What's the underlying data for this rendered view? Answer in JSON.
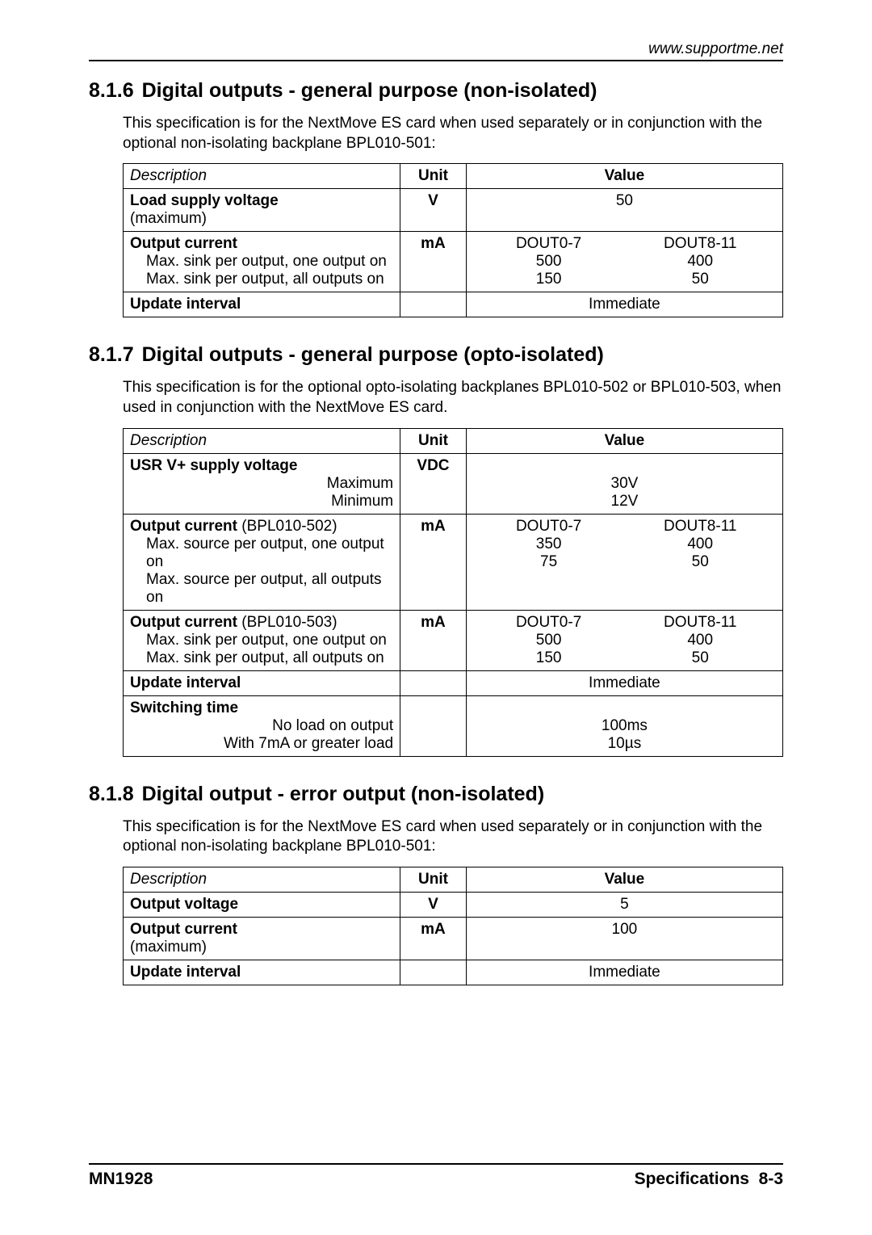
{
  "header": {
    "url": "www.supportme.net"
  },
  "sections": [
    {
      "num": "8.1.6",
      "title": "Digital outputs - general purpose (non-isolated)",
      "intro": "This specification is for the NextMove ES card when used separately or in conjunction with the optional non-isolating backplane BPL010-501:",
      "table": {
        "headers": {
          "desc": "Description",
          "unit": "Unit",
          "value": "Value"
        },
        "rows": [
          {
            "desc_bold": "Load supply voltage",
            "desc_sub": "(maximum)",
            "unit": "V",
            "value_simple": "50"
          },
          {
            "desc_bold": "Output current",
            "desc_lines": [
              "Max. sink per output, one output on",
              "Max. sink per output, all outputs on"
            ],
            "unit": "mA",
            "value_cols": {
              "left": {
                "head": "DOUT0-7",
                "v1": "500",
                "v2": "150"
              },
              "right": {
                "head": "DOUT8-11",
                "v1": "400",
                "v2": "50"
              }
            }
          },
          {
            "desc_bold": "Update interval",
            "unit": "",
            "value_simple": "Immediate"
          }
        ]
      }
    },
    {
      "num": "8.1.7",
      "title": "Digital outputs - general purpose (opto-isolated)",
      "intro": "This specification is for the optional opto-isolating backplanes BPL010-502 or BPL010-503, when used in conjunction with the NextMove ES card.",
      "table": {
        "headers": {
          "desc": "Description",
          "unit": "Unit",
          "value": "Value"
        },
        "rows": [
          {
            "desc_bold": "USR V+ supply voltage",
            "desc_right_lines": [
              "Maximum",
              "Minimum"
            ],
            "unit": "VDC",
            "value_lines": [
              "",
              "30V",
              "12V"
            ]
          },
          {
            "desc_bold": "Output current",
            "desc_bold_suffix": " (BPL010-502)",
            "desc_lines": [
              "Max. source per output, one output on",
              "Max. source per output, all outputs on"
            ],
            "unit": "mA",
            "value_cols": {
              "left": {
                "head": "DOUT0-7",
                "v1": "350",
                "v2": "75"
              },
              "right": {
                "head": "DOUT8-11",
                "v1": "400",
                "v2": "50"
              }
            }
          },
          {
            "desc_bold": "Output current",
            "desc_bold_suffix": " (BPL010-503)",
            "desc_lines": [
              "Max. sink per output, one output on",
              "Max. sink per output, all outputs on"
            ],
            "unit": "mA",
            "value_cols": {
              "left": {
                "head": "DOUT0-7",
                "v1": "500",
                "v2": "150"
              },
              "right": {
                "head": "DOUT8-11",
                "v1": "400",
                "v2": "50"
              }
            }
          },
          {
            "desc_bold": "Update interval",
            "unit": "",
            "value_simple": "Immediate"
          },
          {
            "desc_bold": "Switching time",
            "desc_right_lines": [
              "No load on output",
              "With 7mA or greater load"
            ],
            "unit": "",
            "value_lines": [
              "",
              "100ms",
              "10µs"
            ]
          }
        ]
      }
    },
    {
      "num": "8.1.8",
      "title": "Digital output - error output (non-isolated)",
      "intro": "This specification is for the NextMove ES card when used separately or in conjunction with the optional non-isolating backplane BPL010-501:",
      "table": {
        "headers": {
          "desc": "Description",
          "unit": "Unit",
          "value": "Value"
        },
        "rows": [
          {
            "desc_bold": "Output voltage",
            "unit": "V",
            "value_simple": "5"
          },
          {
            "desc_bold": "Output current",
            "desc_sub": "(maximum)",
            "unit": "mA",
            "value_simple": "100"
          },
          {
            "desc_bold": "Update interval",
            "unit": "",
            "value_simple": "Immediate"
          }
        ]
      }
    }
  ],
  "footer": {
    "left": "MN1928",
    "right_label": "Specifications",
    "right_page": "8-3"
  }
}
